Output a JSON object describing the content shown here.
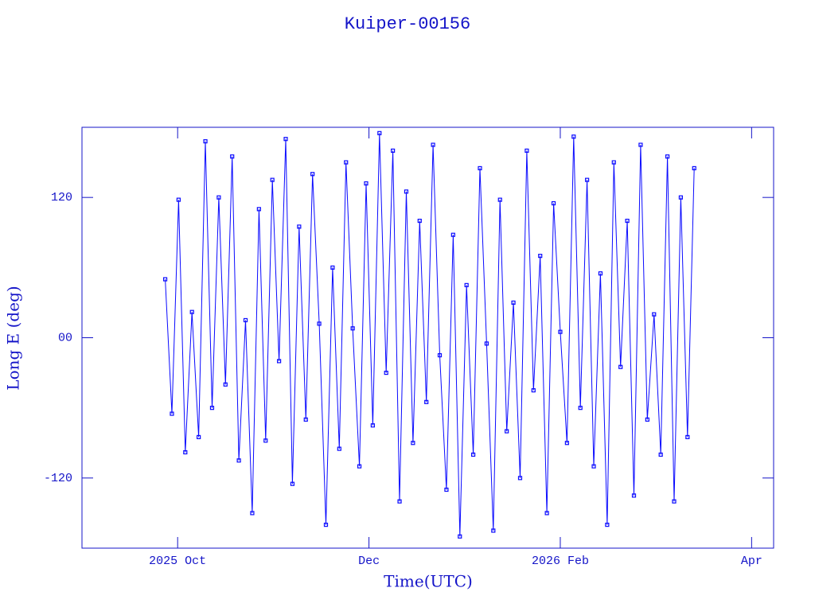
{
  "chart_data": {
    "type": "line",
    "title": "Kuiper-00156",
    "x_label": "Time(UTC)",
    "y_label": "Long E (deg)",
    "xlim": [
      9,
      16.23
    ],
    "xticks": [
      {
        "value": 10,
        "label": "2025 Oct"
      },
      {
        "value": 12,
        "label": "Dec"
      },
      {
        "value": 14,
        "label": "2026 Feb"
      },
      {
        "value": 16,
        "label": "Apr"
      }
    ],
    "ylim": [
      -180,
      180
    ],
    "yticks": [
      -120,
      {
        "value": 0,
        "label": "00"
      },
      120
    ],
    "series": [
      {
        "color": "#0a0aff",
        "x": [
          9.87,
          9.94,
          10.01,
          10.08,
          10.15,
          10.22,
          10.29,
          10.36,
          10.43,
          10.5,
          10.57,
          10.64,
          10.71,
          10.78,
          10.85,
          10.92,
          10.99,
          11.06,
          11.13,
          11.2,
          11.27,
          11.34,
          11.41,
          11.48,
          11.55,
          11.62,
          11.69,
          11.76,
          11.83,
          11.9,
          11.97,
          12.04,
          12.11,
          12.18,
          12.25,
          12.32,
          12.39,
          12.46,
          12.53,
          12.6,
          12.67,
          12.74,
          12.81,
          12.88,
          12.95,
          13.02,
          13.09,
          13.16,
          13.23,
          13.3,
          13.37,
          13.44,
          13.51,
          13.58,
          13.65,
          13.72,
          13.79,
          13.86,
          13.93,
          14.0,
          14.07,
          14.14,
          14.21,
          14.28,
          14.35,
          14.42,
          14.49,
          14.56,
          14.63,
          14.7,
          14.77,
          14.84,
          14.91,
          14.98,
          15.05,
          15.12,
          15.19,
          15.26,
          15.33,
          15.4
        ],
        "values": [
          50,
          -65,
          118,
          -98,
          22,
          -85,
          168,
          -60,
          120,
          -40,
          155,
          -105,
          15,
          -150,
          110,
          -88,
          135,
          -20,
          170,
          -125,
          95,
          -70,
          140,
          12,
          -160,
          60,
          -95,
          150,
          8,
          -110,
          132,
          -75,
          175,
          -30,
          160,
          -140,
          125,
          -90,
          100,
          -55,
          165,
          -15,
          -130,
          88,
          -170,
          45,
          -100,
          145,
          -5,
          -165,
          118,
          -80,
          30,
          -120,
          160,
          -45,
          70,
          -150,
          115,
          5,
          -90,
          172,
          -60,
          135,
          -110,
          55,
          -160,
          150,
          -25,
          100,
          -135,
          165,
          -70,
          20,
          -100,
          155,
          -140,
          120,
          -85,
          145
        ]
      }
    ]
  }
}
